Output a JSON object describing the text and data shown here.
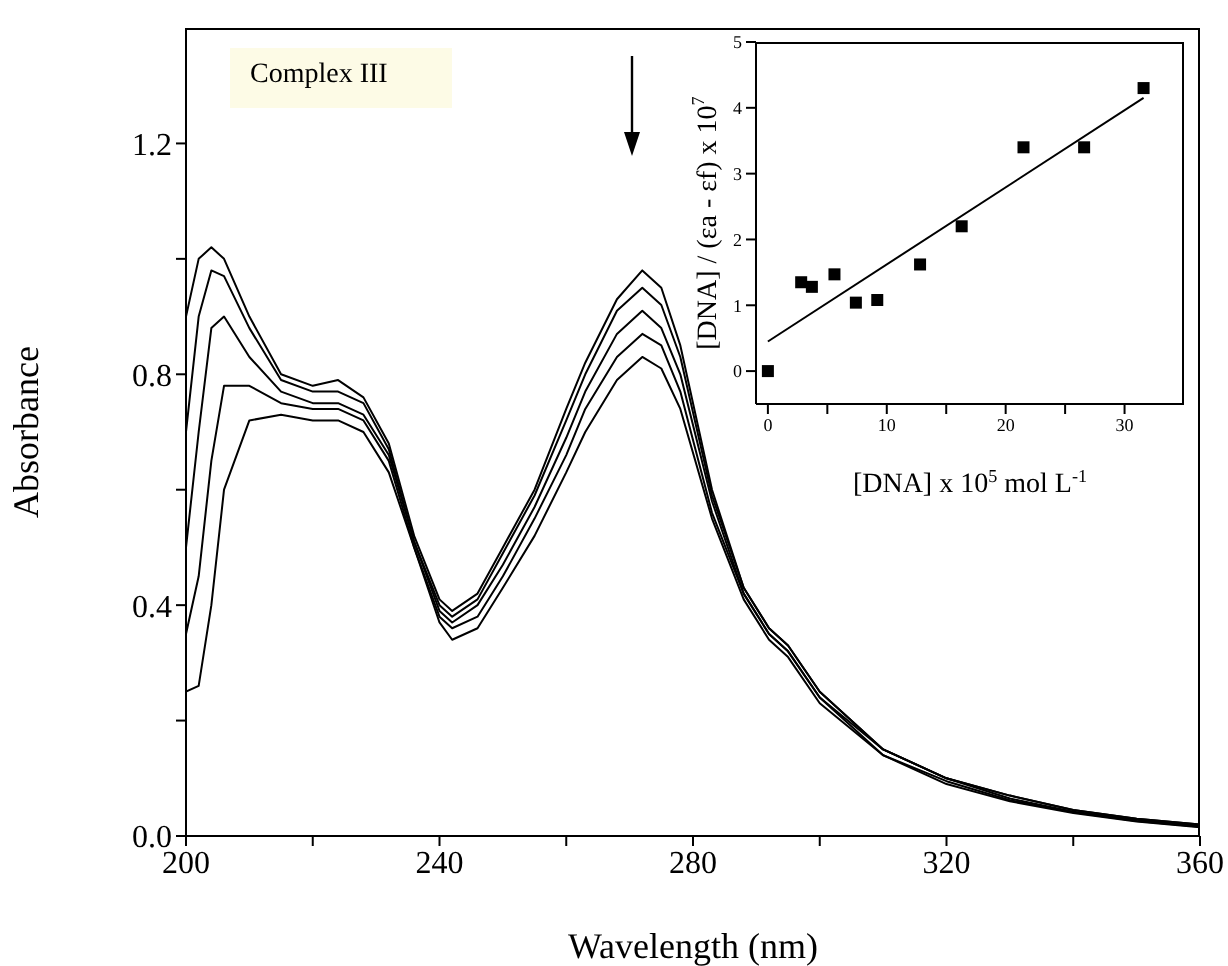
{
  "chart_data": [
    {
      "type": "line",
      "xlabel": "Wavelength (nm)",
      "ylabel": "Absorbance",
      "annotations": [
        "Complex III"
      ],
      "marker": "none",
      "line_style": "solid",
      "x": [
        200,
        202,
        204,
        206,
        210,
        215,
        220,
        224,
        228,
        232,
        236,
        240,
        242,
        246,
        250,
        255,
        260,
        263,
        268,
        272,
        275,
        278,
        283,
        288,
        292,
        295,
        300,
        310,
        320,
        330,
        340,
        350,
        360
      ],
      "xlim": [
        200,
        360
      ],
      "xticks": [
        200,
        {
          "value": 220,
          "label": null
        },
        240,
        {
          "value": 260,
          "label": null
        },
        280,
        {
          "value": 300,
          "label": null
        },
        320,
        {
          "value": 340,
          "label": null
        },
        360
      ],
      "ylim": [
        0,
        1.4
      ],
      "yticks": [
        {
          "value": 0,
          "label": "0.0"
        },
        {
          "value": 0.2,
          "label": null
        },
        {
          "value": 0.4,
          "label": "0.4"
        },
        {
          "value": 0.6,
          "label": null
        },
        {
          "value": 0.8,
          "label": "0.8"
        },
        {
          "value": 1.0,
          "label": null
        },
        {
          "value": 1.2,
          "label": "1.2"
        }
      ],
      "series": [
        {
          "color": "#000000",
          "values": [
            0.9,
            1.0,
            1.02,
            1.0,
            0.9,
            0.8,
            0.78,
            0.79,
            0.76,
            0.68,
            0.52,
            0.41,
            0.39,
            0.42,
            0.5,
            0.6,
            0.74,
            0.82,
            0.93,
            0.98,
            0.95,
            0.85,
            0.6,
            0.43,
            0.36,
            0.33,
            0.25,
            0.15,
            0.1,
            0.07,
            0.045,
            0.03,
            0.02
          ]
        },
        {
          "color": "#000000",
          "values": [
            0.7,
            0.9,
            0.98,
            0.97,
            0.88,
            0.79,
            0.77,
            0.77,
            0.75,
            0.67,
            0.51,
            0.4,
            0.38,
            0.41,
            0.49,
            0.59,
            0.72,
            0.8,
            0.91,
            0.95,
            0.92,
            0.83,
            0.59,
            0.43,
            0.36,
            0.33,
            0.25,
            0.15,
            0.1,
            0.07,
            0.045,
            0.03,
            0.02
          ]
        },
        {
          "color": "#000000",
          "values": [
            0.5,
            0.7,
            0.88,
            0.9,
            0.83,
            0.77,
            0.75,
            0.75,
            0.73,
            0.66,
            0.51,
            0.39,
            0.37,
            0.4,
            0.47,
            0.57,
            0.69,
            0.77,
            0.87,
            0.91,
            0.88,
            0.8,
            0.58,
            0.42,
            0.35,
            0.32,
            0.24,
            0.15,
            0.1,
            0.065,
            0.042,
            0.028,
            0.018
          ]
        },
        {
          "color": "#000000",
          "values": [
            0.35,
            0.45,
            0.65,
            0.78,
            0.78,
            0.75,
            0.74,
            0.74,
            0.72,
            0.65,
            0.5,
            0.38,
            0.36,
            0.38,
            0.45,
            0.55,
            0.66,
            0.74,
            0.83,
            0.87,
            0.85,
            0.77,
            0.56,
            0.42,
            0.35,
            0.32,
            0.24,
            0.14,
            0.095,
            0.062,
            0.041,
            0.026,
            0.016
          ]
        },
        {
          "color": "#000000",
          "values": [
            0.25,
            0.26,
            0.4,
            0.6,
            0.72,
            0.73,
            0.72,
            0.72,
            0.7,
            0.63,
            0.5,
            0.37,
            0.34,
            0.36,
            0.43,
            0.52,
            0.63,
            0.7,
            0.79,
            0.83,
            0.81,
            0.74,
            0.55,
            0.41,
            0.34,
            0.31,
            0.23,
            0.14,
            0.09,
            0.06,
            0.04,
            0.025,
            0.015
          ]
        }
      ]
    },
    {
      "type": "scatter",
      "xlabel": "[DNA] x 10$^{5}$ mol L$^{-1}$",
      "ylabel": "[DNA] / (εa - εf) x 10$^{7}$",
      "marker": "square",
      "xlim": [
        -1,
        35
      ],
      "xticks": [
        0,
        {
          "value": 5,
          "label": null
        },
        10,
        {
          "value": 15,
          "label": null
        },
        20,
        {
          "value": 25,
          "label": null
        },
        30
      ],
      "ylim": [
        -0.5,
        5
      ],
      "yticks": [
        0,
        1,
        2,
        3,
        4,
        5
      ],
      "series": [
        {
          "color": "#000000",
          "x": [
            0,
            2.8,
            3.7,
            5.6,
            7.4,
            9.2,
            12.8,
            16.3,
            21.5,
            26.6,
            31.6
          ],
          "values": [
            0,
            1.35,
            1.28,
            1.47,
            1.04,
            1.08,
            1.62,
            2.2,
            3.4,
            3.4,
            4.3
          ]
        },
        {
          "type": "line",
          "color": "#000000",
          "marker": "none",
          "x": [
            0,
            31.6
          ],
          "values": [
            0.45,
            4.15
          ]
        }
      ]
    }
  ]
}
